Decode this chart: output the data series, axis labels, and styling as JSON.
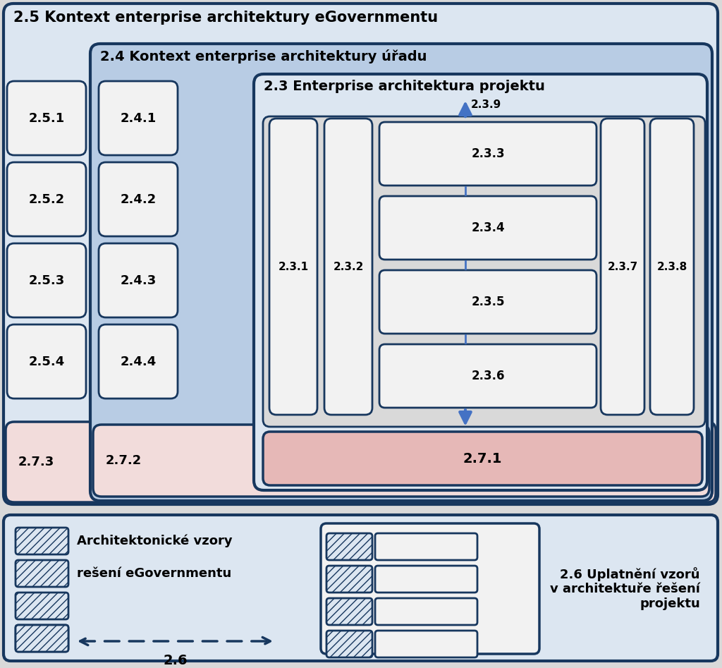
{
  "fig_width": 10.24,
  "fig_height": 9.47,
  "bg_color": "#d9d9d9",
  "border_color": "#17375e",
  "box_fill_light_blue": "#dce6f1",
  "box_fill_medium_blue": "#b8cce4",
  "box_fill_white": "#f2f2f2",
  "box_fill_pink": "#f2dcdb",
  "box_fill_pink_dark": "#e6b8b7",
  "box_fill_inner_gray": "#d9d9d9",
  "arrow_color": "#4472c4",
  "text_color": "#000000",
  "label_25": "2.5 Kontext enterprise architektury eGovernmentu",
  "label_24": "2.4 Kontext enterprise architektury úřadu",
  "label_23": "2.3 Enterprise architektura projektu",
  "label_251": "2.5.1",
  "label_252": "2.5.2",
  "label_253": "2.5.3",
  "label_254": "2.5.4",
  "label_273": "2.7.3",
  "label_241": "2.4.1",
  "label_242": "2.4.2",
  "label_243": "2.4.3",
  "label_244": "2.4.4",
  "label_272": "2.7.2",
  "label_231": "2.3.1",
  "label_232": "2.3.2",
  "label_233": "2.3.3",
  "label_234": "2.3.4",
  "label_235": "2.3.5",
  "label_236": "2.3.6",
  "label_237": "2.3.7",
  "label_238": "2.3.8",
  "label_239": "2.3.9",
  "label_271": "2.7.1",
  "legend_left_line1": "Architektonické vzory",
  "legend_left_line2": "rešení eGovernmentu",
  "legend_right_title": "2.6 Uplatnění vzorů\nv architektuře řešení\nprojektu",
  "label_26": "2.6"
}
